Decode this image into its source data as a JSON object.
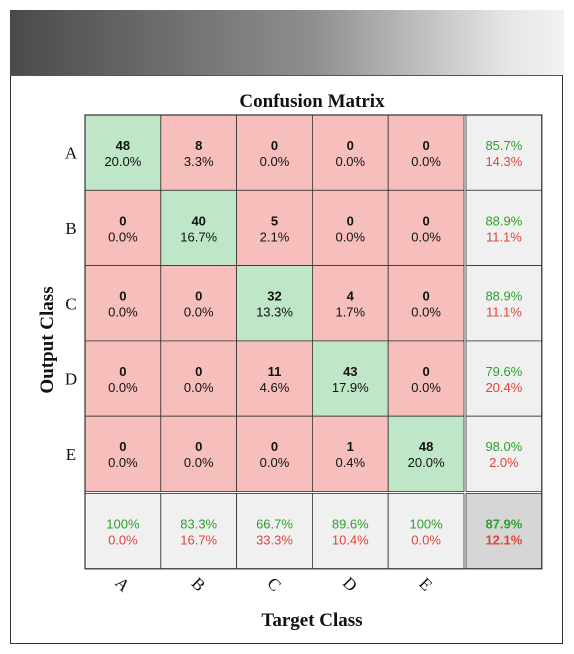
{
  "chart_data": {
    "type": "heatmap",
    "title": "Confusion Matrix",
    "xlabel": "Target Class",
    "ylabel": "Output Class",
    "classes": [
      "A",
      "B",
      "C",
      "D",
      "E"
    ],
    "counts": [
      [
        48,
        8,
        0,
        0,
        0
      ],
      [
        0,
        40,
        5,
        0,
        0
      ],
      [
        0,
        0,
        32,
        4,
        0
      ],
      [
        0,
        0,
        11,
        43,
        0
      ],
      [
        0,
        0,
        0,
        1,
        48
      ]
    ],
    "percents": [
      [
        "20.0%",
        "3.3%",
        "0.0%",
        "0.0%",
        "0.0%"
      ],
      [
        "0.0%",
        "16.7%",
        "2.1%",
        "0.0%",
        "0.0%"
      ],
      [
        "0.0%",
        "0.0%",
        "13.3%",
        "1.7%",
        "0.0%"
      ],
      [
        "0.0%",
        "0.0%",
        "4.6%",
        "17.9%",
        "0.0%"
      ],
      [
        "0.0%",
        "0.0%",
        "0.0%",
        "0.4%",
        "20.0%"
      ]
    ],
    "row_summary": [
      {
        "correct": "85.7%",
        "incorrect": "14.3%"
      },
      {
        "correct": "88.9%",
        "incorrect": "11.1%"
      },
      {
        "correct": "88.9%",
        "incorrect": "11.1%"
      },
      {
        "correct": "79.6%",
        "incorrect": "20.4%"
      },
      {
        "correct": "98.0%",
        "incorrect": "2.0%"
      }
    ],
    "column_summary": [
      {
        "correct": "100%",
        "incorrect": "0.0%"
      },
      {
        "correct": "83.3%",
        "incorrect": "16.7%"
      },
      {
        "correct": "66.7%",
        "incorrect": "33.3%"
      },
      {
        "correct": "89.6%",
        "incorrect": "10.4%"
      },
      {
        "correct": "100%",
        "incorrect": "0.0%"
      }
    ],
    "overall": {
      "correct": "87.9%",
      "incorrect": "12.1%"
    },
    "colors": {
      "diagonal": "#bfe6c6",
      "off_diagonal": "#f7bfbb",
      "summary": "#f0f0f0",
      "overall": "#d6d6d6",
      "correct_text": "#2ca02c",
      "incorrect_text": "#e0453a",
      "grid": "#333333"
    }
  }
}
